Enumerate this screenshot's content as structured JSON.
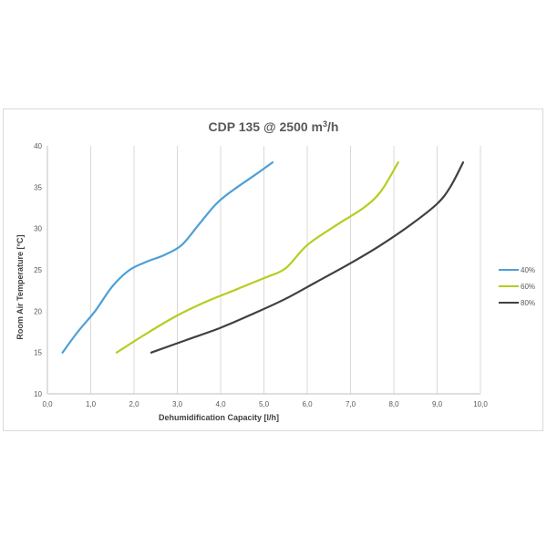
{
  "chart_data": {
    "type": "line",
    "title": "CDP 135 @ 2500 m",
    "title_sup": "3",
    "title_suffix": "/h",
    "xlabel": "Dehumidification Capacity [l/h]",
    "ylabel": "Room Air  Temperature [°C]",
    "xlim": [
      0,
      10
    ],
    "ylim": [
      10,
      40
    ],
    "x_ticks": [
      "0,0",
      "1,0",
      "2,0",
      "3,0",
      "4,0",
      "5,0",
      "6,0",
      "7,0",
      "8,0",
      "9,0",
      "10,0"
    ],
    "y_ticks": [
      "10",
      "15",
      "20",
      "25",
      "30",
      "35",
      "40"
    ],
    "grid": "vertical",
    "legend_position": "right",
    "series": [
      {
        "name": "40%",
        "color": "#4d9fd6",
        "points": [
          [
            0.35,
            15
          ],
          [
            0.7,
            17.5
          ],
          [
            1.1,
            20
          ],
          [
            1.5,
            23
          ],
          [
            1.9,
            25
          ],
          [
            2.3,
            26
          ],
          [
            2.7,
            26.8
          ],
          [
            3.1,
            28
          ],
          [
            3.5,
            30.5
          ],
          [
            3.9,
            33
          ],
          [
            4.3,
            34.7
          ],
          [
            4.8,
            36.5
          ],
          [
            5.2,
            38
          ]
        ]
      },
      {
        "name": "60%",
        "color": "#b8cc1f",
        "points": [
          [
            1.6,
            15
          ],
          [
            2.2,
            17
          ],
          [
            2.9,
            19.2
          ],
          [
            3.6,
            21
          ],
          [
            4.3,
            22.5
          ],
          [
            5.0,
            24
          ],
          [
            5.5,
            25.2
          ],
          [
            6.0,
            28
          ],
          [
            6.7,
            30.5
          ],
          [
            7.3,
            32.5
          ],
          [
            7.7,
            34.5
          ],
          [
            8.1,
            38
          ]
        ]
      },
      {
        "name": "80%",
        "color": "#404040",
        "points": [
          [
            2.4,
            15
          ],
          [
            3.2,
            16.5
          ],
          [
            4.0,
            18
          ],
          [
            4.8,
            19.8
          ],
          [
            5.5,
            21.5
          ],
          [
            6.2,
            23.5
          ],
          [
            7.0,
            25.8
          ],
          [
            7.7,
            28
          ],
          [
            8.4,
            30.5
          ],
          [
            9.0,
            33
          ],
          [
            9.3,
            35
          ],
          [
            9.6,
            38
          ]
        ]
      }
    ]
  }
}
